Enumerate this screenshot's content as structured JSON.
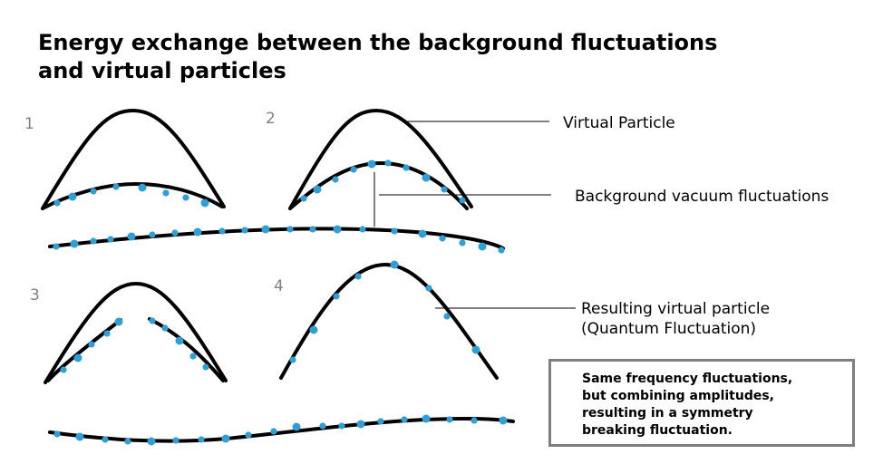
{
  "title": {
    "line1": "Energy exchange between the background fluctuations",
    "line2": "and virtual particles"
  },
  "panels": [
    "1",
    "2",
    "3",
    "4"
  ],
  "labels": {
    "virtual_particle": "Virtual Particle",
    "background": "Background vacuum fluctuations",
    "resulting_line1": "Resulting virtual particle",
    "resulting_line2": "(Quantum Fluctuation)"
  },
  "note": {
    "line1": "Same frequency fluctuations,",
    "line2": "but combining amplitudes,",
    "line3": "resulting in a symmetry",
    "line4": "breaking fluctuation."
  },
  "colors": {
    "curve": "#000000",
    "particle_dot": "#2f9fd6",
    "panel_number": "#808080",
    "note_border": "#7f7f7f"
  }
}
